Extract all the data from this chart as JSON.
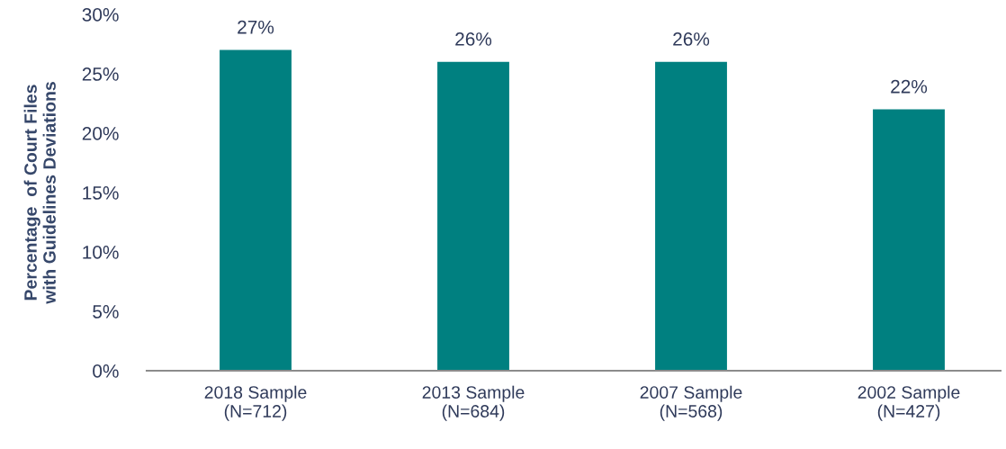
{
  "chart_data": {
    "type": "bar",
    "ylabel": "Percentage  of Court Files\nwith Guidelines Deviations",
    "categories": [
      "2018 Sample\n(N=712)",
      "2013 Sample\n(N=684)",
      "2007 Sample\n(N=568)",
      "2002 Sample\n(N=427)"
    ],
    "values": [
      27,
      26,
      26,
      22
    ],
    "color": "#008080",
    "value_labels": [
      "27%",
      "26%",
      "26%",
      "22%"
    ],
    "ylim": [
      0,
      30
    ],
    "yticks": [
      {
        "value": 0,
        "label": "0%"
      },
      {
        "value": 5,
        "label": "5%"
      },
      {
        "value": 10,
        "label": "10%"
      },
      {
        "value": 15,
        "label": "15%"
      },
      {
        "value": 20,
        "label": "20%"
      },
      {
        "value": 25,
        "label": "25%"
      },
      {
        "value": 30,
        "label": "30%"
      }
    ],
    "grid": false,
    "legend": false
  }
}
